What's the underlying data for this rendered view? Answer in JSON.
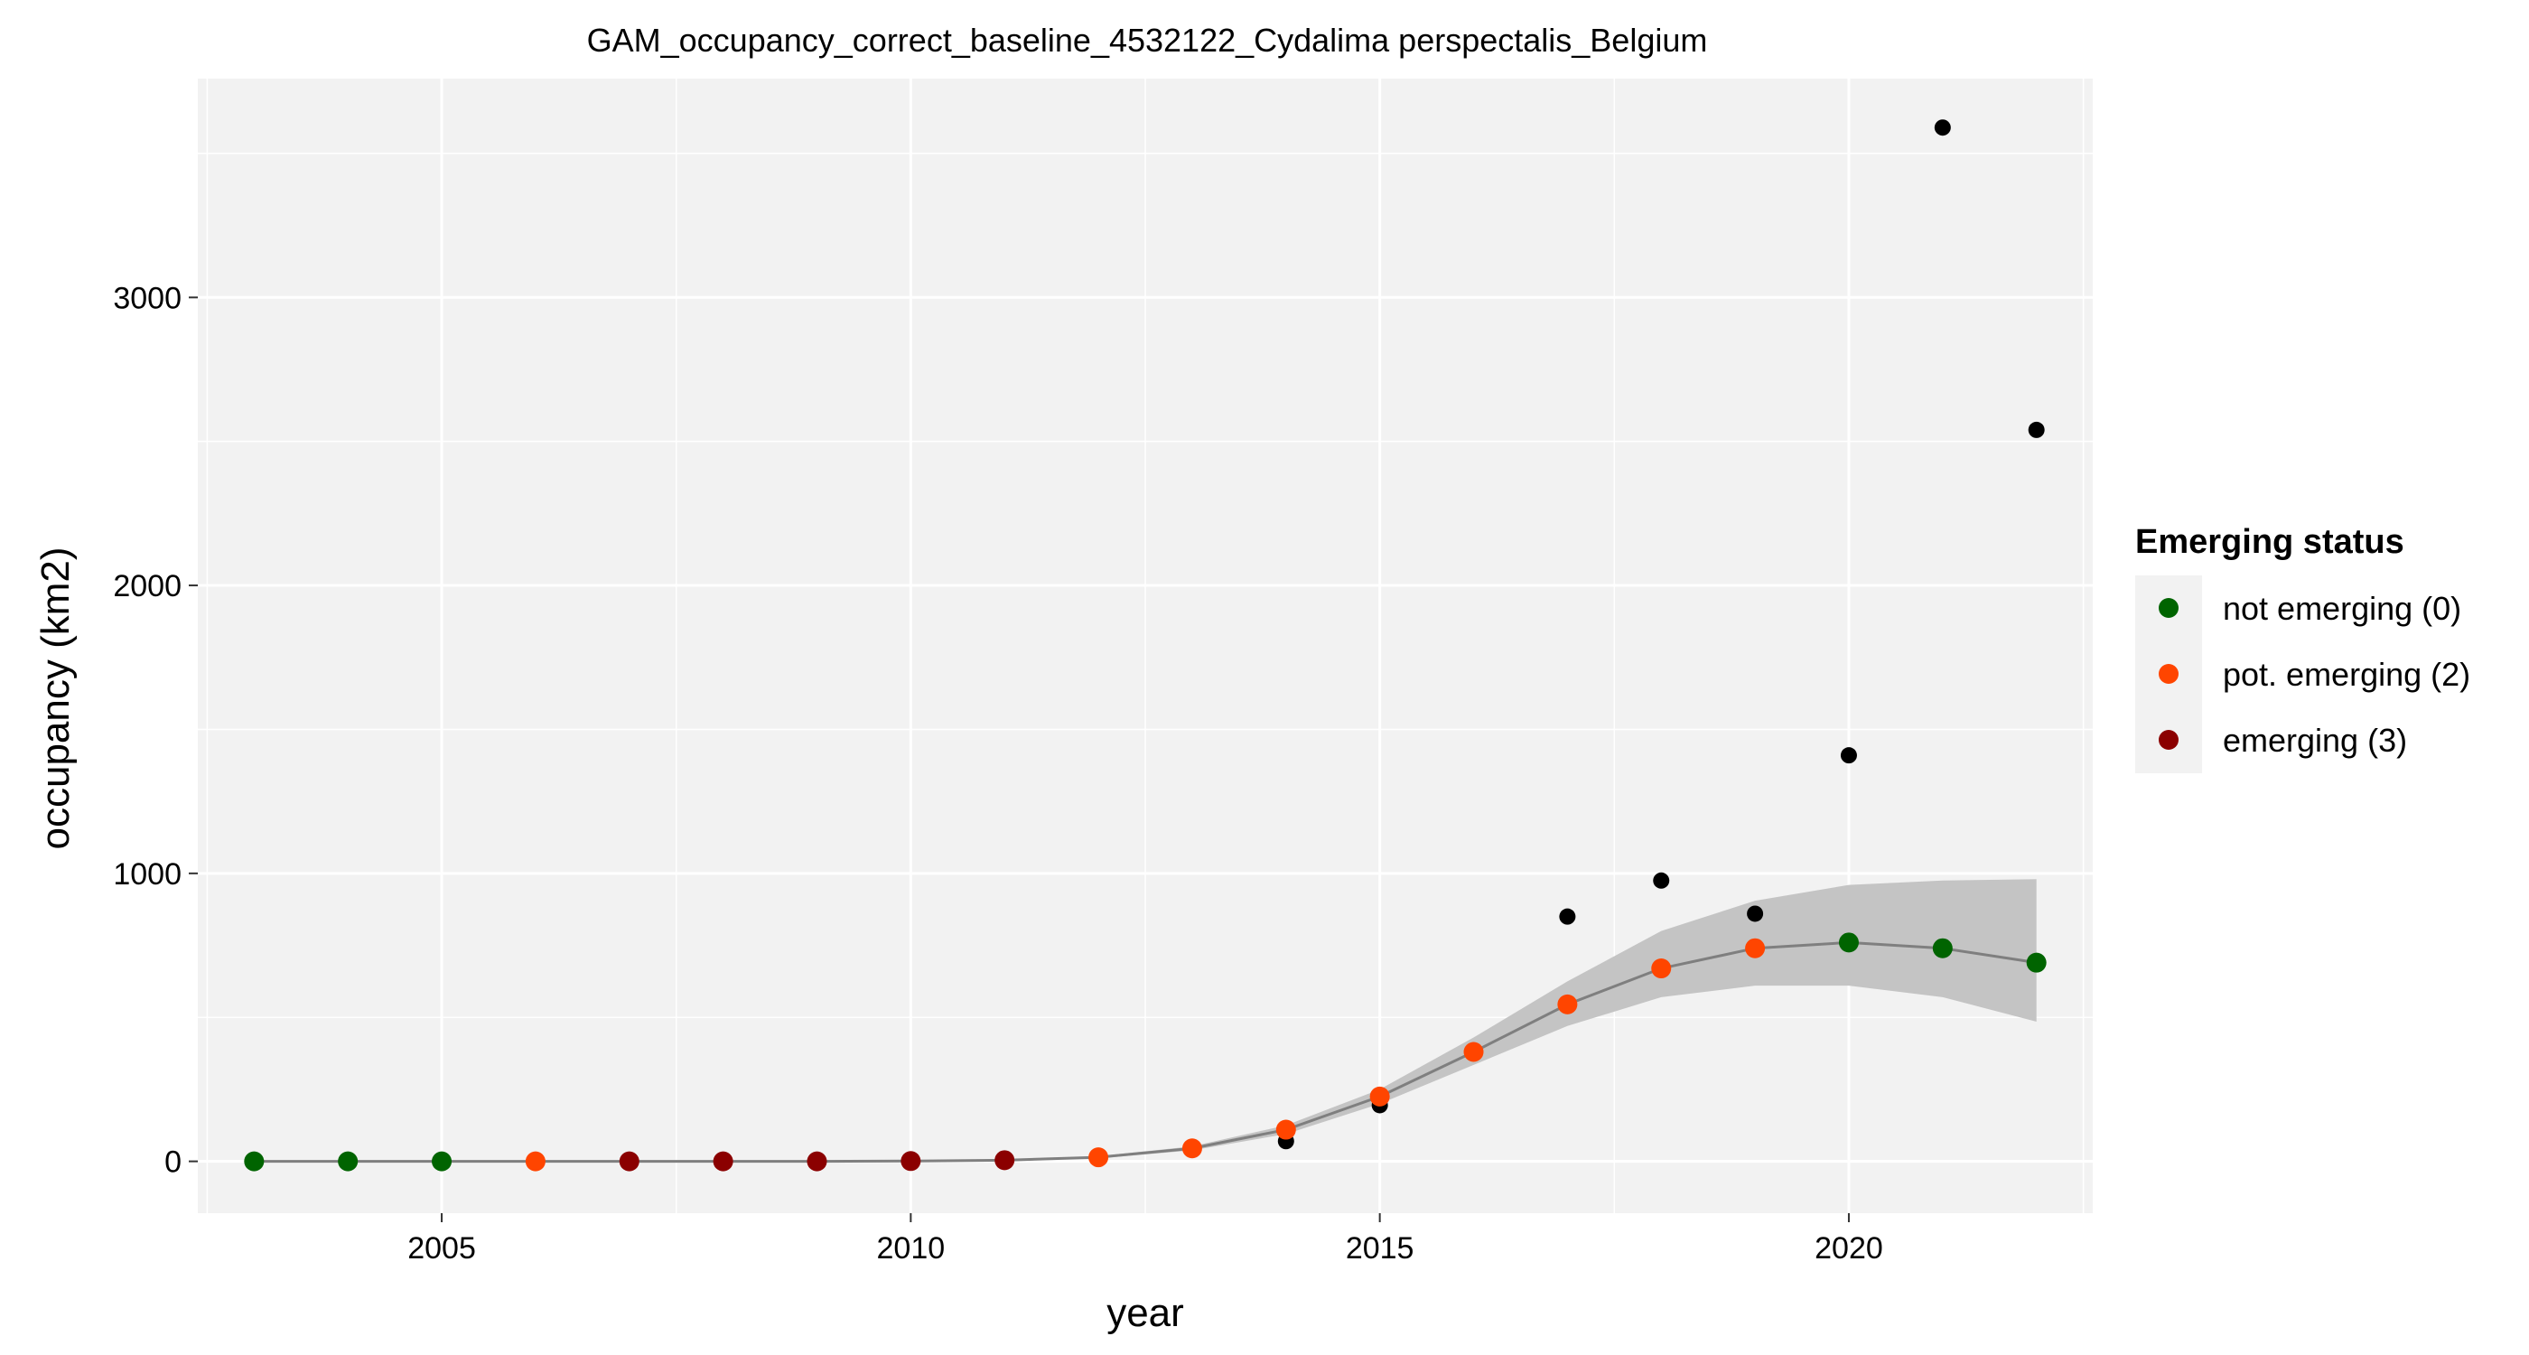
{
  "chart_data": {
    "type": "scatter",
    "title": "GAM_occupancy_correct_baseline_4532122_Cydalima perspectalis_Belgium",
    "xlabel": "year",
    "ylabel": "occupancy (km2)",
    "xlim": [
      2002.4,
      2022.6
    ],
    "ylim": [
      -180,
      3760
    ],
    "x_ticks": [
      2005,
      2010,
      2015,
      2020
    ],
    "y_ticks": [
      0,
      1000,
      2000,
      3000
    ],
    "grid": true,
    "observed": {
      "color": "#000000",
      "points": [
        {
          "x": 2003,
          "y": 0
        },
        {
          "x": 2004,
          "y": 0
        },
        {
          "x": 2005,
          "y": 0
        },
        {
          "x": 2006,
          "y": 0
        },
        {
          "x": 2007,
          "y": 0
        },
        {
          "x": 2008,
          "y": 0
        },
        {
          "x": 2009,
          "y": 0
        },
        {
          "x": 2010,
          "y": 0
        },
        {
          "x": 2011,
          "y": 5
        },
        {
          "x": 2012,
          "y": 15
        },
        {
          "x": 2013,
          "y": 45
        },
        {
          "x": 2014,
          "y": 70
        },
        {
          "x": 2015,
          "y": 195
        },
        {
          "x": 2016,
          "y": 385
        },
        {
          "x": 2017,
          "y": 850
        },
        {
          "x": 2018,
          "y": 975
        },
        {
          "x": 2019,
          "y": 860
        },
        {
          "x": 2020,
          "y": 1410
        },
        {
          "x": 2021,
          "y": 3590
        },
        {
          "x": 2022,
          "y": 2540
        }
      ]
    },
    "fit": {
      "line_color": "#7f7f7f",
      "band_color": "#c4c4c4",
      "points": [
        {
          "x": 2003,
          "y": 0,
          "lower": 0,
          "upper": 0,
          "status": 0
        },
        {
          "x": 2004,
          "y": 0,
          "lower": 0,
          "upper": 0,
          "status": 0
        },
        {
          "x": 2005,
          "y": 0,
          "lower": 0,
          "upper": 0,
          "status": 0
        },
        {
          "x": 2006,
          "y": 0,
          "lower": 0,
          "upper": 0,
          "status": 2
        },
        {
          "x": 2007,
          "y": 0,
          "lower": 0,
          "upper": 0,
          "status": 3
        },
        {
          "x": 2008,
          "y": 0,
          "lower": 0,
          "upper": 0,
          "status": 3
        },
        {
          "x": 2009,
          "y": 0,
          "lower": 0,
          "upper": 0,
          "status": 3
        },
        {
          "x": 2010,
          "y": 1,
          "lower": 0,
          "upper": 2,
          "status": 3
        },
        {
          "x": 2011,
          "y": 4,
          "lower": 2,
          "upper": 6,
          "status": 3
        },
        {
          "x": 2012,
          "y": 14,
          "lower": 10,
          "upper": 18,
          "status": 2
        },
        {
          "x": 2013,
          "y": 45,
          "lower": 38,
          "upper": 52,
          "status": 2
        },
        {
          "x": 2014,
          "y": 110,
          "lower": 95,
          "upper": 125,
          "status": 2
        },
        {
          "x": 2015,
          "y": 225,
          "lower": 200,
          "upper": 250,
          "status": 2
        },
        {
          "x": 2016,
          "y": 380,
          "lower": 335,
          "upper": 430,
          "status": 2
        },
        {
          "x": 2017,
          "y": 545,
          "lower": 470,
          "upper": 625,
          "status": 2
        },
        {
          "x": 2018,
          "y": 670,
          "lower": 570,
          "upper": 800,
          "status": 2
        },
        {
          "x": 2019,
          "y": 740,
          "lower": 610,
          "upper": 905,
          "status": 2
        },
        {
          "x": 2020,
          "y": 760,
          "lower": 610,
          "upper": 960,
          "status": 0
        },
        {
          "x": 2021,
          "y": 740,
          "lower": 570,
          "upper": 975,
          "status": 0
        },
        {
          "x": 2022,
          "y": 690,
          "lower": 485,
          "upper": 980,
          "status": 0
        }
      ]
    },
    "status_colors": {
      "0": "#006400",
      "2": "#ff4500",
      "3": "#8b0000"
    },
    "legend": {
      "title": "Emerging status",
      "placement": "right",
      "items": [
        {
          "label": "not emerging (0)",
          "color": "#006400"
        },
        {
          "label": "pot. emerging (2)",
          "color": "#ff4500"
        },
        {
          "label": "emerging (3)",
          "color": "#8b0000"
        }
      ]
    },
    "panel_color": "#f2f2f2",
    "grid_color": "#ffffff"
  }
}
